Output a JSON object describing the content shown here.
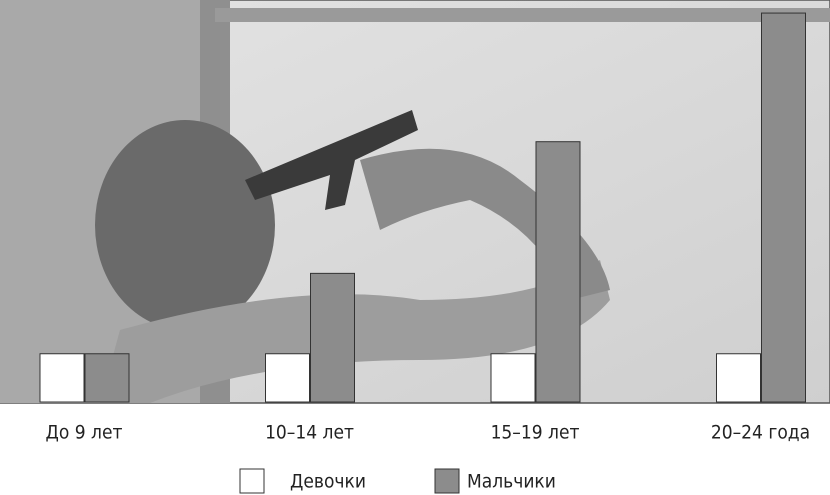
{
  "chart_data": {
    "type": "bar",
    "categories": [
      "До 9 лет",
      "10–14 лет",
      "15–19 лет",
      "20–24 года"
    ],
    "series": [
      {
        "name": "Девочки",
        "color": "#ffffff",
        "values": [
          48,
          48,
          48,
          48
        ]
      },
      {
        "name": "Мальчики",
        "color": "#8c8c8c",
        "values": [
          48,
          128,
          259,
          387
        ]
      }
    ],
    "ylim": [
      0,
      400
    ]
  }
}
